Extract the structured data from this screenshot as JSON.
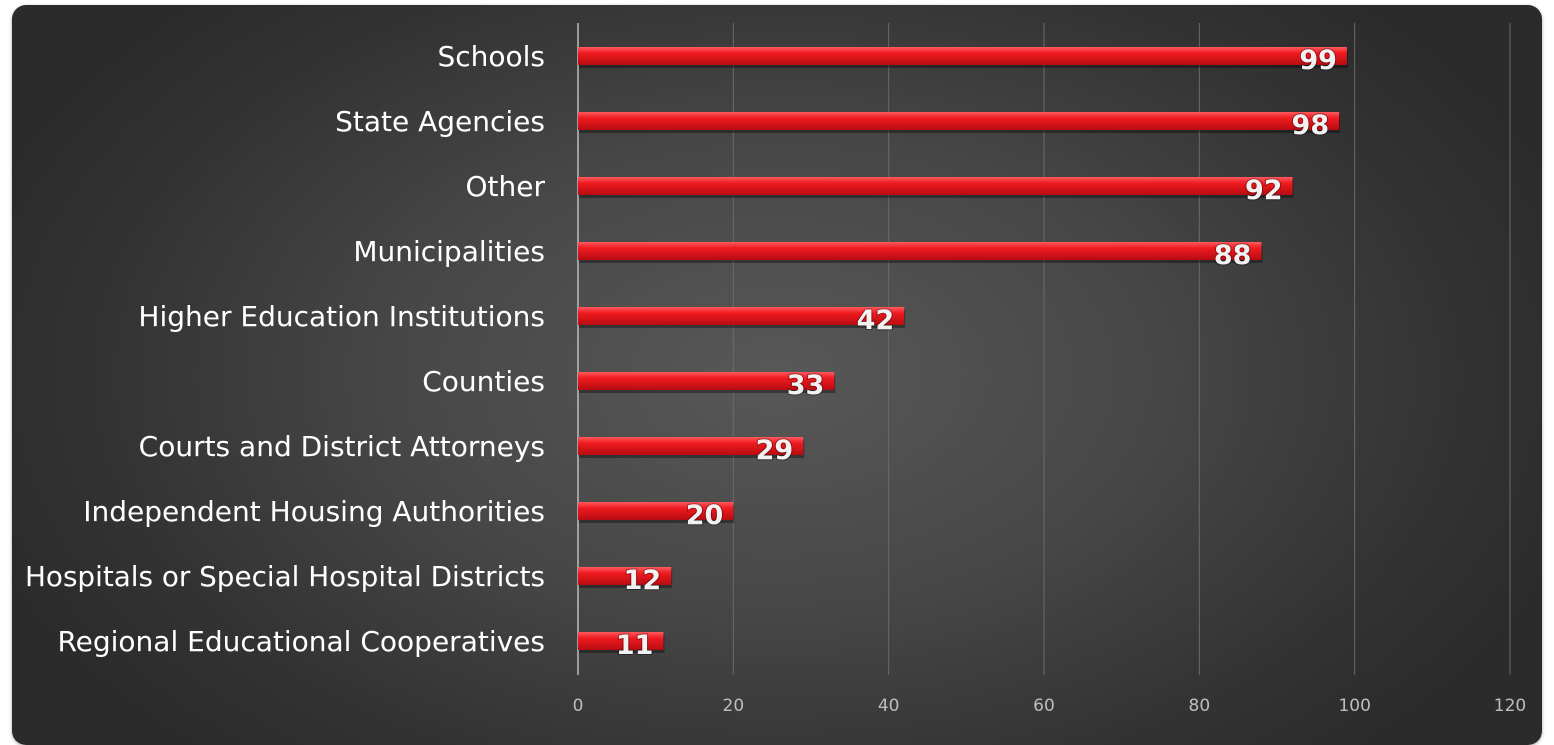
{
  "chart_data": {
    "type": "bar",
    "orientation": "horizontal",
    "categories": [
      "Schools",
      "State Agencies",
      "Other",
      "Municipalities",
      "Higher Education Institutions",
      "Counties",
      "Courts and District Attorneys",
      "Independent Housing Authorities",
      "Hospitals or Special Hospital Districts",
      "Regional Educational Cooperatives"
    ],
    "values": [
      99,
      98,
      92,
      88,
      42,
      33,
      29,
      20,
      12,
      11
    ],
    "xlim": [
      0,
      120
    ],
    "xticks": [
      0,
      20,
      40,
      60,
      80,
      100,
      120
    ],
    "grid": true,
    "data_labels": true,
    "colors": {
      "bar": "#e8151b",
      "bar_highlight": "#ff4a4f",
      "bar_shadow": "#9e0a0e",
      "gridline": "#6a6a6a",
      "axis": "#bcbcbc",
      "label_text": "#ffffff",
      "tick_text": "#bdbdbd"
    }
  }
}
